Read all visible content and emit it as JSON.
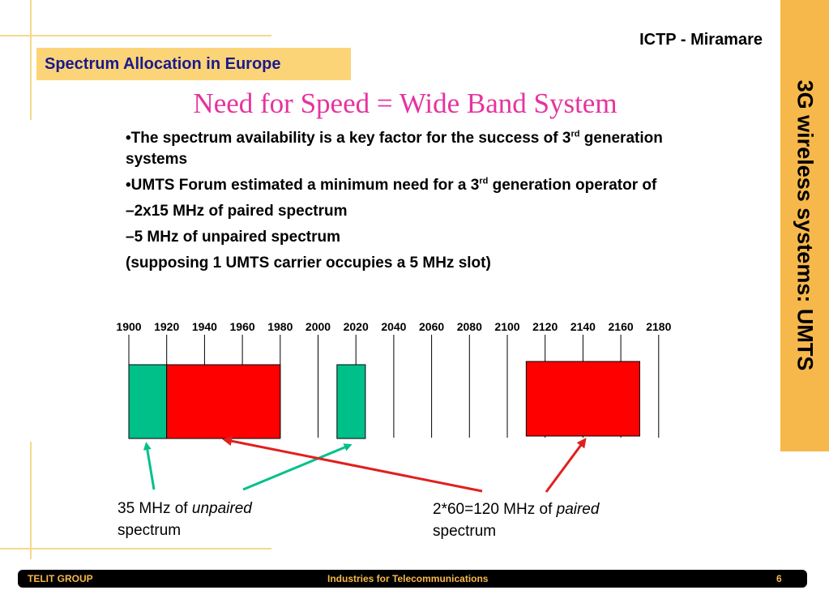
{
  "header": {
    "org": "ICTP - Miramare",
    "section_title": "Spectrum Allocation in Europe",
    "side_banner": "3G wireless systems: UMTS"
  },
  "main": {
    "title": "Need for Speed = Wide Band System",
    "bullets": {
      "b1_text": "•The spectrum availability is a key factor for the success of 3",
      "b1_sup": "rd",
      "b1_tail": " generation systems",
      "b2_text": "•UMTS Forum estimated a minimum need for a 3",
      "b2_sup": "rd",
      "b2_tail": " generation operator of",
      "b3": "–2x15 MHz of paired spectrum",
      "b4": "–5 MHz of unpaired spectrum",
      "b5": "(supposing 1 UMTS carrier occupies a 5 MHz slot)"
    }
  },
  "chart_data": {
    "type": "diagram",
    "frequency_ticks": [
      1900,
      1920,
      1940,
      1960,
      1980,
      2000,
      2020,
      2040,
      2060,
      2080,
      2100,
      2120,
      2140,
      2160,
      2180
    ],
    "bands": [
      {
        "start": 1900,
        "end": 1920,
        "kind": "unpaired",
        "color": "#00c08a"
      },
      {
        "start": 1920,
        "end": 1980,
        "kind": "paired",
        "color": "#ff0000"
      },
      {
        "start": 2010,
        "end": 2025,
        "kind": "unpaired",
        "color": "#00c08a"
      },
      {
        "start": 2110,
        "end": 2170,
        "kind": "paired",
        "color": "#ff0000"
      }
    ]
  },
  "captions": {
    "unpaired_prefix": "35 MHz of ",
    "unpaired_em": "unpaired",
    "unpaired_suffix": "spectrum",
    "paired_prefix": "2*60=120 MHz of ",
    "paired_em": "paired",
    "paired_suffix": "spectrum"
  },
  "footer": {
    "left": "TELIT GROUP",
    "center": "Industries  for Telecommunications",
    "page": "6"
  },
  "colors": {
    "accent_orange": "#f7b84b",
    "section_box": "#fcd478",
    "title_pink": "#e6339e",
    "green_arrow": "#00c08a",
    "red_arrow": "#e0201e"
  }
}
